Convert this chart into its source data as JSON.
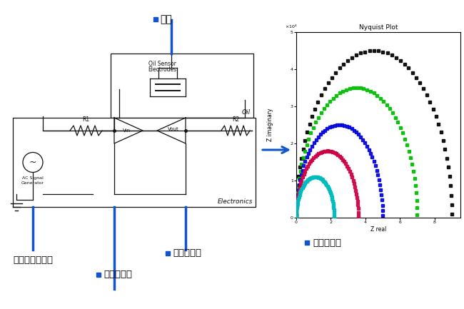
{
  "label_electrode": "电极",
  "label_ac": "交流信号发生器",
  "label_vin": "电压输入端",
  "label_vout": "电压输出端",
  "label_nyquist": "奈奎斯特图",
  "nyquist_title": "Nyquist Plot",
  "nyquist_xlabel": "Z real",
  "nyquist_ylabel": "Z imaginary",
  "arc_colors": [
    "#000000",
    "#00bb00",
    "#0000dd",
    "#cc0044",
    "#00bbbb"
  ],
  "arc_radii": [
    4.5,
    3.5,
    2.5,
    1.8,
    1.1
  ],
  "arc_centers_x": [
    4.5,
    3.5,
    2.5,
    1.8,
    1.1
  ],
  "background_color": "#ffffff",
  "blue_line_color": "#1155cc",
  "bullet_color": "#1155cc",
  "arrow_color": "#1155cc"
}
